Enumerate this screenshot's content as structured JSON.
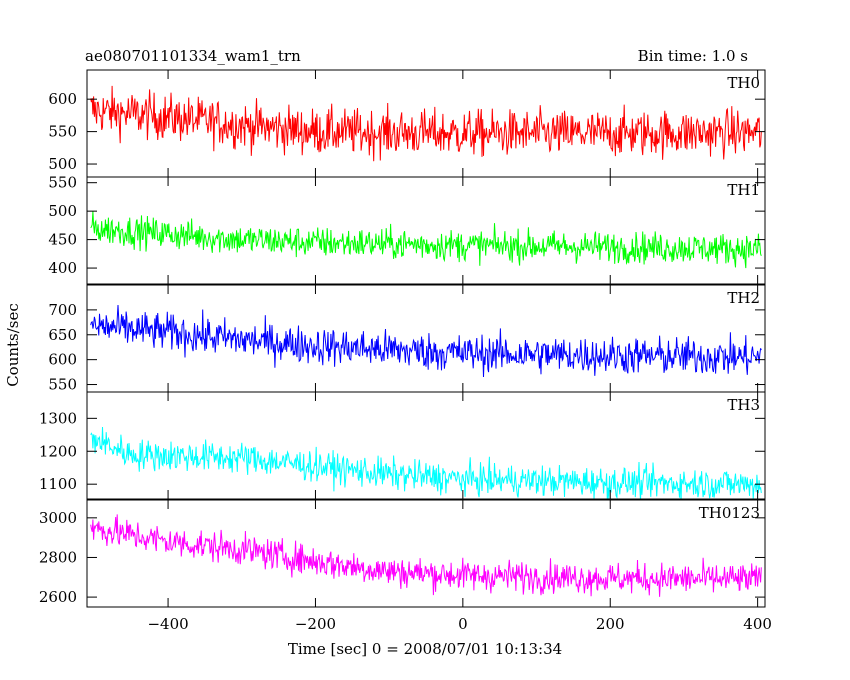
{
  "header": {
    "title": "ae080701101334_wam1_trn",
    "bin_time": "Bin time: 1.0 s"
  },
  "axes": {
    "xlabel": "Time [sec] 0 = 2008/07/01 10:13:34",
    "ylabel": "Counts/sec"
  },
  "chart_data": {
    "type": "line",
    "title": "ae080701101334_wam1_trn",
    "xlabel": "Time [sec] 0 = 2008/07/01 10:13:34",
    "ylabel": "Counts/sec",
    "xlim": [
      -510,
      410
    ],
    "x_ticks": [
      -400,
      -200,
      0,
      200,
      400
    ],
    "x_start": -505,
    "x_end": 405,
    "x_step": 1,
    "panels": [
      {
        "name": "TH0",
        "color": "#ff0000",
        "ylim": [
          480,
          645
        ],
        "y_ticks": [
          500,
          550,
          600
        ],
        "trend": [
          [
            -505,
            583
          ],
          [
            -400,
            572
          ],
          [
            -300,
            560
          ],
          [
            -200,
            550
          ],
          [
            0,
            547
          ],
          [
            200,
            547
          ],
          [
            405,
            549
          ]
        ],
        "noise": 34
      },
      {
        "name": "TH1",
        "color": "#00ff00",
        "ylim": [
          372,
          560
        ],
        "y_ticks": [
          400,
          450,
          500,
          550
        ],
        "trend": [
          [
            -505,
            470
          ],
          [
            -400,
            460
          ],
          [
            -300,
            450
          ],
          [
            -200,
            445
          ],
          [
            0,
            440
          ],
          [
            200,
            437
          ],
          [
            405,
            433
          ]
        ],
        "noise": 26
      },
      {
        "name": "TH2",
        "color": "#0000ff",
        "ylim": [
          535,
          750
        ],
        "y_ticks": [
          550,
          600,
          650,
          700
        ],
        "trend": [
          [
            -505,
            668
          ],
          [
            -400,
            655
          ],
          [
            -300,
            640
          ],
          [
            -200,
            628
          ],
          [
            -100,
            620
          ],
          [
            0,
            613
          ],
          [
            200,
            608
          ],
          [
            405,
            605
          ]
        ],
        "noise": 36
      },
      {
        "name": "TH3",
        "color": "#00ffff",
        "ylim": [
          1055,
          1380
        ],
        "y_ticks": [
          1100,
          1200,
          1300
        ],
        "trend": [
          [
            -505,
            1240
          ],
          [
            -450,
            1190
          ],
          [
            -300,
            1180
          ],
          [
            -200,
            1155
          ],
          [
            -100,
            1130
          ],
          [
            0,
            1115
          ],
          [
            200,
            1105
          ],
          [
            405,
            1100
          ]
        ],
        "noise": 45
      },
      {
        "name": "TH0123",
        "color": "#ff00ff",
        "ylim": [
          2550,
          3090
        ],
        "y_ticks": [
          2600,
          2800,
          3000
        ],
        "trend": [
          [
            -505,
            2950
          ],
          [
            -400,
            2880
          ],
          [
            -300,
            2840
          ],
          [
            -200,
            2780
          ],
          [
            -100,
            2730
          ],
          [
            0,
            2710
          ],
          [
            200,
            2695
          ],
          [
            405,
            2690
          ]
        ],
        "noise": 75
      }
    ]
  }
}
